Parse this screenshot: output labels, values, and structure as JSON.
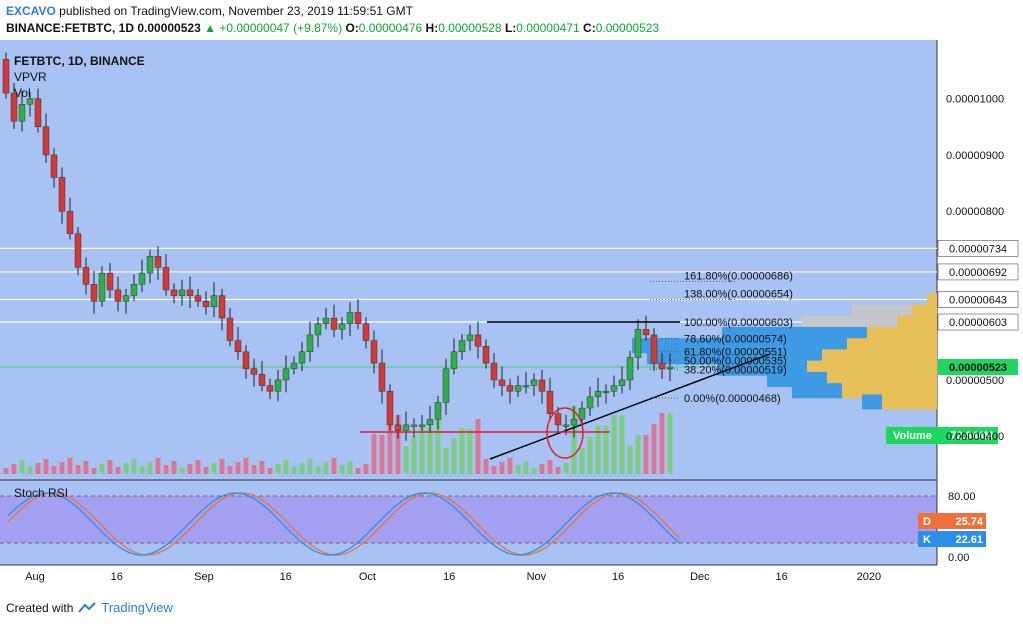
{
  "header": {
    "author": "EXCAVO",
    "published": "published on TradingView.com, November 23, 2019 11:59:51 GMT",
    "symbol": "BINANCE:FETBTC, 1D",
    "last": "0.00000523",
    "change": "+0.00000047 (+9.87%)",
    "o_label": "O:",
    "o": "0.00000476",
    "h_label": "H:",
    "h": "0.00000528",
    "l_label": "L:",
    "l": "0.00000471",
    "c_label": "C:",
    "c": "0.00000523"
  },
  "legend": {
    "symbol": "FETBTC, 1D, BINANCE",
    "vpvr": "VPVR",
    "vol": "Vol",
    "stoch": "Stoch RSI"
  },
  "footer": {
    "created_with": "Created with",
    "brand": "TradingView"
  },
  "colors": {
    "background": "#a7c2f3",
    "up": "#2fae4a",
    "down": "#d33a3a",
    "vol_up": "#78cf78",
    "vol_down": "#e0708a",
    "stoch_bg": "#a49cf2",
    "stoch_k": "#2b8ee8",
    "stoch_d": "#f0703a",
    "price_tag": "#1ed760",
    "vp_blue": "#3f9ae6",
    "vp_yellow": "#e8c05a",
    "vp_gray": "#c5c7cb"
  },
  "chart_data": {
    "type": "candlestick",
    "x_axis": {
      "ticks": [
        {
          "label": "Aug",
          "date": "2019-08-01"
        },
        {
          "label": "16",
          "date": "2019-08-16"
        },
        {
          "label": "Sep",
          "date": "2019-09-01"
        },
        {
          "label": "16",
          "date": "2019-09-16"
        },
        {
          "label": "Oct",
          "date": "2019-10-01"
        },
        {
          "label": "16",
          "date": "2019-10-16"
        },
        {
          "label": "Nov",
          "date": "2019-11-01"
        },
        {
          "label": "16",
          "date": "2019-11-16"
        },
        {
          "label": "Dec",
          "date": "2019-12-01"
        },
        {
          "label": "16",
          "date": "2019-12-16"
        },
        {
          "label": "2020",
          "date": "2020-01-01"
        }
      ]
    },
    "price_axis": {
      "ticks": [
        "0.00001000",
        "0.00000900",
        "0.00000800",
        "0.00000500",
        "0.00000400"
      ]
    },
    "horizontal_levels": [
      "0.00000734",
      "0.00000692",
      "0.00000643",
      "0.00000603"
    ],
    "current_price": "0.00000523",
    "closes": [
      1010,
      960,
      990,
      1000,
      950,
      900,
      860,
      800,
      760,
      700,
      670,
      640,
      690,
      660,
      640,
      650,
      670,
      690,
      720,
      700,
      660,
      650,
      660,
      650,
      640,
      630,
      650,
      610,
      570,
      550,
      520,
      510,
      490,
      480,
      500,
      520,
      530,
      550,
      580,
      600,
      610,
      590,
      600,
      620,
      600,
      570,
      530,
      480,
      420,
      410,
      420,
      420,
      420,
      430,
      460,
      520,
      550,
      570,
      580,
      560,
      530,
      500,
      490,
      480,
      490,
      490,
      500,
      480,
      440,
      420,
      420,
      430,
      450,
      470,
      480,
      480,
      490,
      500,
      540,
      590,
      580,
      530,
      520,
      523
    ],
    "fib_levels": [
      {
        "label": "161.80%(0.00000686)",
        "value": 686
      },
      {
        "label": "138.00%(0.00000654)",
        "value": 654
      },
      {
        "label": "100.00%(0.00000603)",
        "value": 603
      },
      {
        "label": "78.60%(0.00000574)",
        "value": 574
      },
      {
        "label": "61.80%(0.00000551)",
        "value": 551
      },
      {
        "label": "50.00%(0.00000535)",
        "value": 535
      },
      {
        "label": "38.20%(0.00000519)",
        "value": 519
      },
      {
        "label": "0.00%(0.00000468)",
        "value": 468
      }
    ],
    "volume_profile": {
      "label": "Volume",
      "value": "72.844M",
      "rows": [
        {
          "price": 640,
          "buy": 10,
          "sell": 0
        },
        {
          "price": 620,
          "buy": 25,
          "sell": 60
        },
        {
          "price": 600,
          "buy": 40,
          "sell": 95
        },
        {
          "price": 580,
          "buy": 70,
          "sell": 145
        },
        {
          "price": 560,
          "buy": 90,
          "sell": 215
        },
        {
          "price": 540,
          "buy": 115,
          "sell": 175
        },
        {
          "price": 520,
          "buy": 130,
          "sell": 90
        },
        {
          "price": 500,
          "buy": 110,
          "sell": 60
        },
        {
          "price": 480,
          "buy": 95,
          "sell": 50
        },
        {
          "price": 460,
          "buy": 55,
          "sell": 20
        }
      ]
    },
    "stoch_rsi": {
      "k": "22.61",
      "d": "25.74",
      "k_label": "K",
      "d_label": "D",
      "ticks": [
        "80.00",
        "0.00"
      ]
    }
  }
}
